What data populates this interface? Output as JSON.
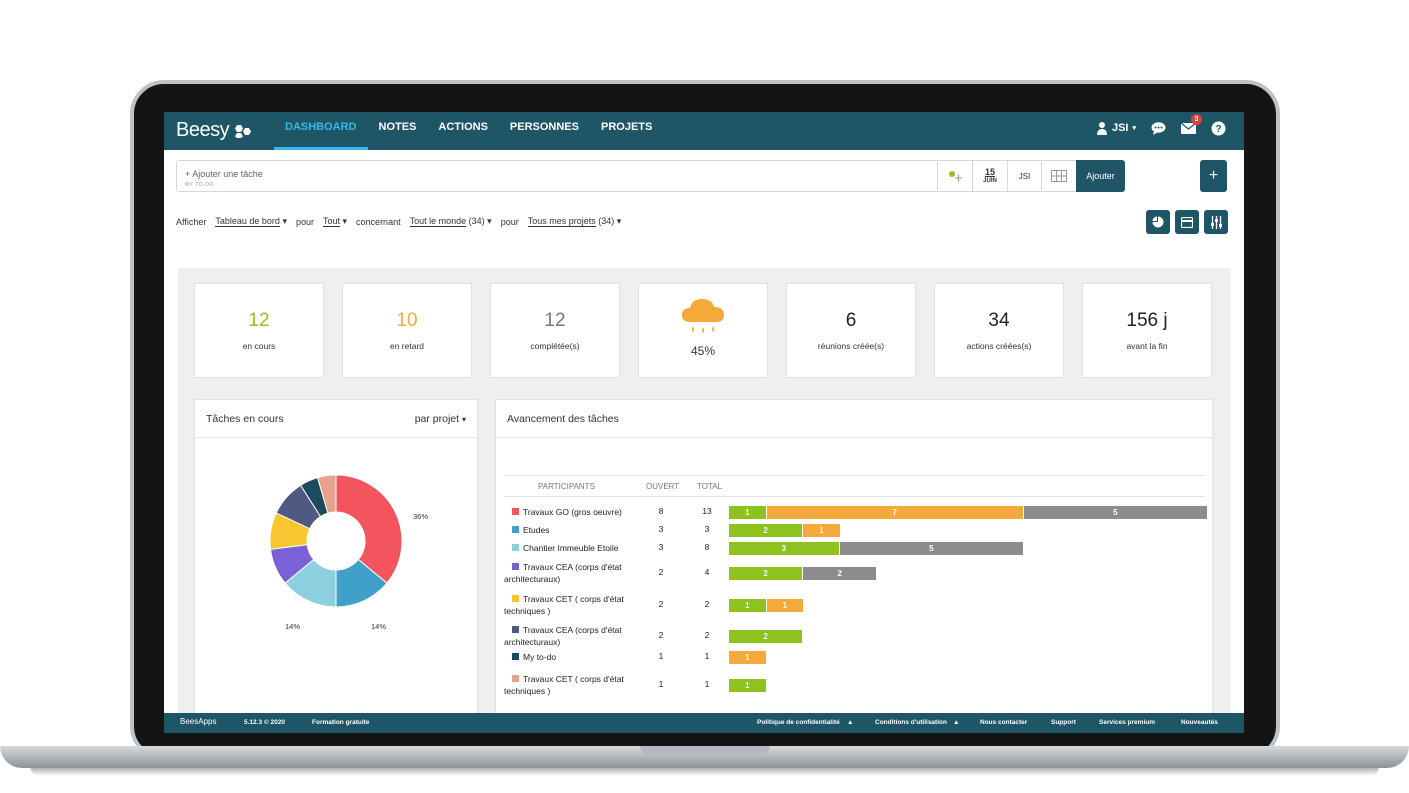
{
  "app": {
    "brand": "Beesy"
  },
  "nav": {
    "items": [
      {
        "label": "DASHBOARD",
        "active": true
      },
      {
        "label": "NOTES"
      },
      {
        "label": "ACTIONS"
      },
      {
        "label": "PERSONNES"
      },
      {
        "label": "PROJETS"
      }
    ],
    "user": "JSI",
    "mail_badge": "3"
  },
  "taskbar": {
    "placeholder": "+ Ajouter une tâche",
    "sub": "MY TO-DO",
    "date_day": "15",
    "date_month": "JUIN",
    "assignee": "JSI",
    "add_label": "Ajouter",
    "plus_label": "+"
  },
  "filters": {
    "afficher": "Afficher",
    "view": "Tableau de bord",
    "pour1": "pour",
    "scope": "Tout",
    "concernant": "concernant",
    "people": "Tout le monde",
    "people_count": "(34)",
    "pour2": "pour",
    "projects": "Tous mes projets",
    "projects_count": "(34)"
  },
  "kpis": [
    {
      "value": "12",
      "label": "en cours",
      "color": "#8dc21f"
    },
    {
      "value": "10",
      "label": "en retard",
      "color": "#f4a93b"
    },
    {
      "value": "12",
      "label": "complétée(s)",
      "color": "#777777"
    },
    {
      "value": "45%",
      "label": "",
      "weather": true,
      "color": "#f4a93b"
    },
    {
      "value": "6",
      "label": "réunions créée(s)",
      "color": "#222222"
    },
    {
      "value": "34",
      "label": "actions créées(s)",
      "color": "#222222"
    },
    {
      "value": "156 j",
      "label": "avant la fin",
      "color": "#222222"
    }
  ],
  "left_panel": {
    "title": "Tâches en cours",
    "group_by": "par projet",
    "pie_labels": [
      "36%",
      "14%",
      "14%"
    ]
  },
  "right_panel": {
    "title": "Avancement des tâches",
    "headers": {
      "participants": "PARTICIPANTS",
      "ouvert": "OUVERT",
      "total": "TOTAL"
    }
  },
  "chart_data": {
    "type": "table",
    "columns": [
      "PARTICIPANTS",
      "OUVERT",
      "TOTAL"
    ],
    "rows": [
      {
        "name": "Travaux GO (gros oeuvre)",
        "color": "#f2555e",
        "ouvert": 8,
        "total": 13,
        "segments": [
          1,
          7,
          5
        ]
      },
      {
        "name": "Etudes",
        "color": "#3fa0c9",
        "ouvert": 3,
        "total": 3,
        "segments": [
          2,
          1,
          0
        ]
      },
      {
        "name": "Chantier Immeuble Etoile",
        "color": "#8ecfdf",
        "ouvert": 3,
        "total": 8,
        "segments": [
          3,
          0,
          5
        ]
      },
      {
        "name": "Travaux CEA (corps d'état architecturaux)",
        "color": "#7b61d8",
        "ouvert": 2,
        "total": 4,
        "segments": [
          2,
          0,
          2
        ]
      },
      {
        "name": "Travaux CET ( corps d'état techniques )",
        "color": "#f7c631",
        "ouvert": 2,
        "total": 2,
        "segments": [
          1,
          1,
          0
        ]
      },
      {
        "name": "Travaux CEA (corps d'état architecturaux)",
        "color": "#4f5a83",
        "ouvert": 2,
        "total": 2,
        "segments": [
          2,
          0,
          0
        ]
      },
      {
        "name": "My to-do",
        "color": "#1e4a5f",
        "ouvert": 1,
        "total": 1,
        "segments": [
          0,
          1,
          0
        ]
      },
      {
        "name": "Travaux CET ( corps d'état techniques )",
        "color": "#e8a18b",
        "ouvert": 1,
        "total": 1,
        "segments": [
          1,
          0,
          0
        ]
      }
    ],
    "pie": {
      "type": "pie",
      "slices": [
        {
          "value": 36,
          "color": "#f2555e"
        },
        {
          "value": 14,
          "color": "#3fa0c9"
        },
        {
          "value": 14,
          "color": "#8ecfdf"
        },
        {
          "value": 9,
          "color": "#7b61d8"
        },
        {
          "value": 9,
          "color": "#f7c631"
        },
        {
          "value": 9,
          "color": "#4f5a83"
        },
        {
          "value": 4.5,
          "color": "#1e4a5f"
        },
        {
          "value": 4.5,
          "color": "#e8a18b"
        }
      ]
    }
  },
  "footer": {
    "brand": "BeesApps",
    "version": "5.12.3 © 2020",
    "training": "Formation gratuite",
    "privacy": "Politique de confidentialité",
    "terms": "Conditions d'utilisation",
    "contact": "Nous contacter",
    "support": "Support",
    "premium": "Services premium",
    "news": "Nouveautés"
  }
}
